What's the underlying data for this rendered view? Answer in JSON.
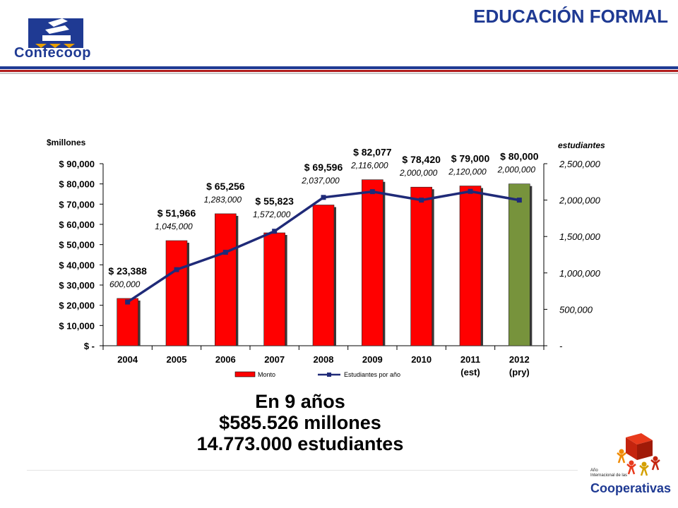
{
  "header": {
    "logo_name": "Confecoop",
    "title": "EDUCACIÓN FORMAL"
  },
  "colors": {
    "brand_blue": "#1f3a93",
    "bar_red": "#ff0000",
    "bar_green": "#77933c",
    "line_navy": "#1f2a78",
    "band_red": "#b01c1c"
  },
  "chart_data": {
    "type": "bar",
    "categories": [
      "2004",
      "2005",
      "2006",
      "2007",
      "2008",
      "2009",
      "2010",
      "2011",
      "2012"
    ],
    "category_sublabels": [
      "",
      "",
      "",
      "",
      "",
      "",
      "",
      "(est)",
      "(pry)"
    ],
    "ylabel": "$millones",
    "y2label": "estudiantes",
    "ylim": [
      0,
      90000
    ],
    "y2lim": [
      0,
      2500000
    ],
    "yticks": [
      "$ -",
      "$ 10,000",
      "$ 20,000",
      "$ 30,000",
      "$ 40,000",
      "$ 50,000",
      "$ 60,000",
      "$ 70,000",
      "$ 80,000",
      "$ 90,000"
    ],
    "y2ticks": [
      "-",
      "500,000",
      "1,000,000",
      "1,500,000",
      "2,000,000",
      "2,500,000"
    ],
    "legend_position": "bottom",
    "series": [
      {
        "name": "Monto",
        "kind": "bar",
        "axis": "left",
        "values": [
          23388,
          51966,
          65256,
          55823,
          69596,
          82077,
          78420,
          79000,
          80000
        ],
        "labels": [
          "$ 23,388",
          "$ 51,966",
          "$ 65,256",
          "$ 55,823",
          "$ 69,596",
          "$ 82,077",
          "$ 78,420",
          "$ 79,000",
          "$ 80,000"
        ]
      },
      {
        "name": "Estudiantes por año",
        "kind": "line",
        "axis": "right",
        "values": [
          600000,
          1045000,
          1283000,
          1572000,
          2037000,
          2116000,
          2000000,
          2120000,
          2000000
        ],
        "labels": [
          "600,000",
          "1,045,000",
          "1,283,000",
          "1,572,000",
          "2,037,000",
          "2,116,000",
          "2,000,000",
          "2,120,000",
          "2,000,000"
        ]
      }
    ]
  },
  "summary": {
    "line1": "En 9 años",
    "line2": "$585.526 millones",
    "line3": "14.773.000 estudiantes"
  },
  "footer": {
    "small_text_1": "Año",
    "small_text_2": "Internacional de las",
    "coop_name": "Cooperativas"
  }
}
